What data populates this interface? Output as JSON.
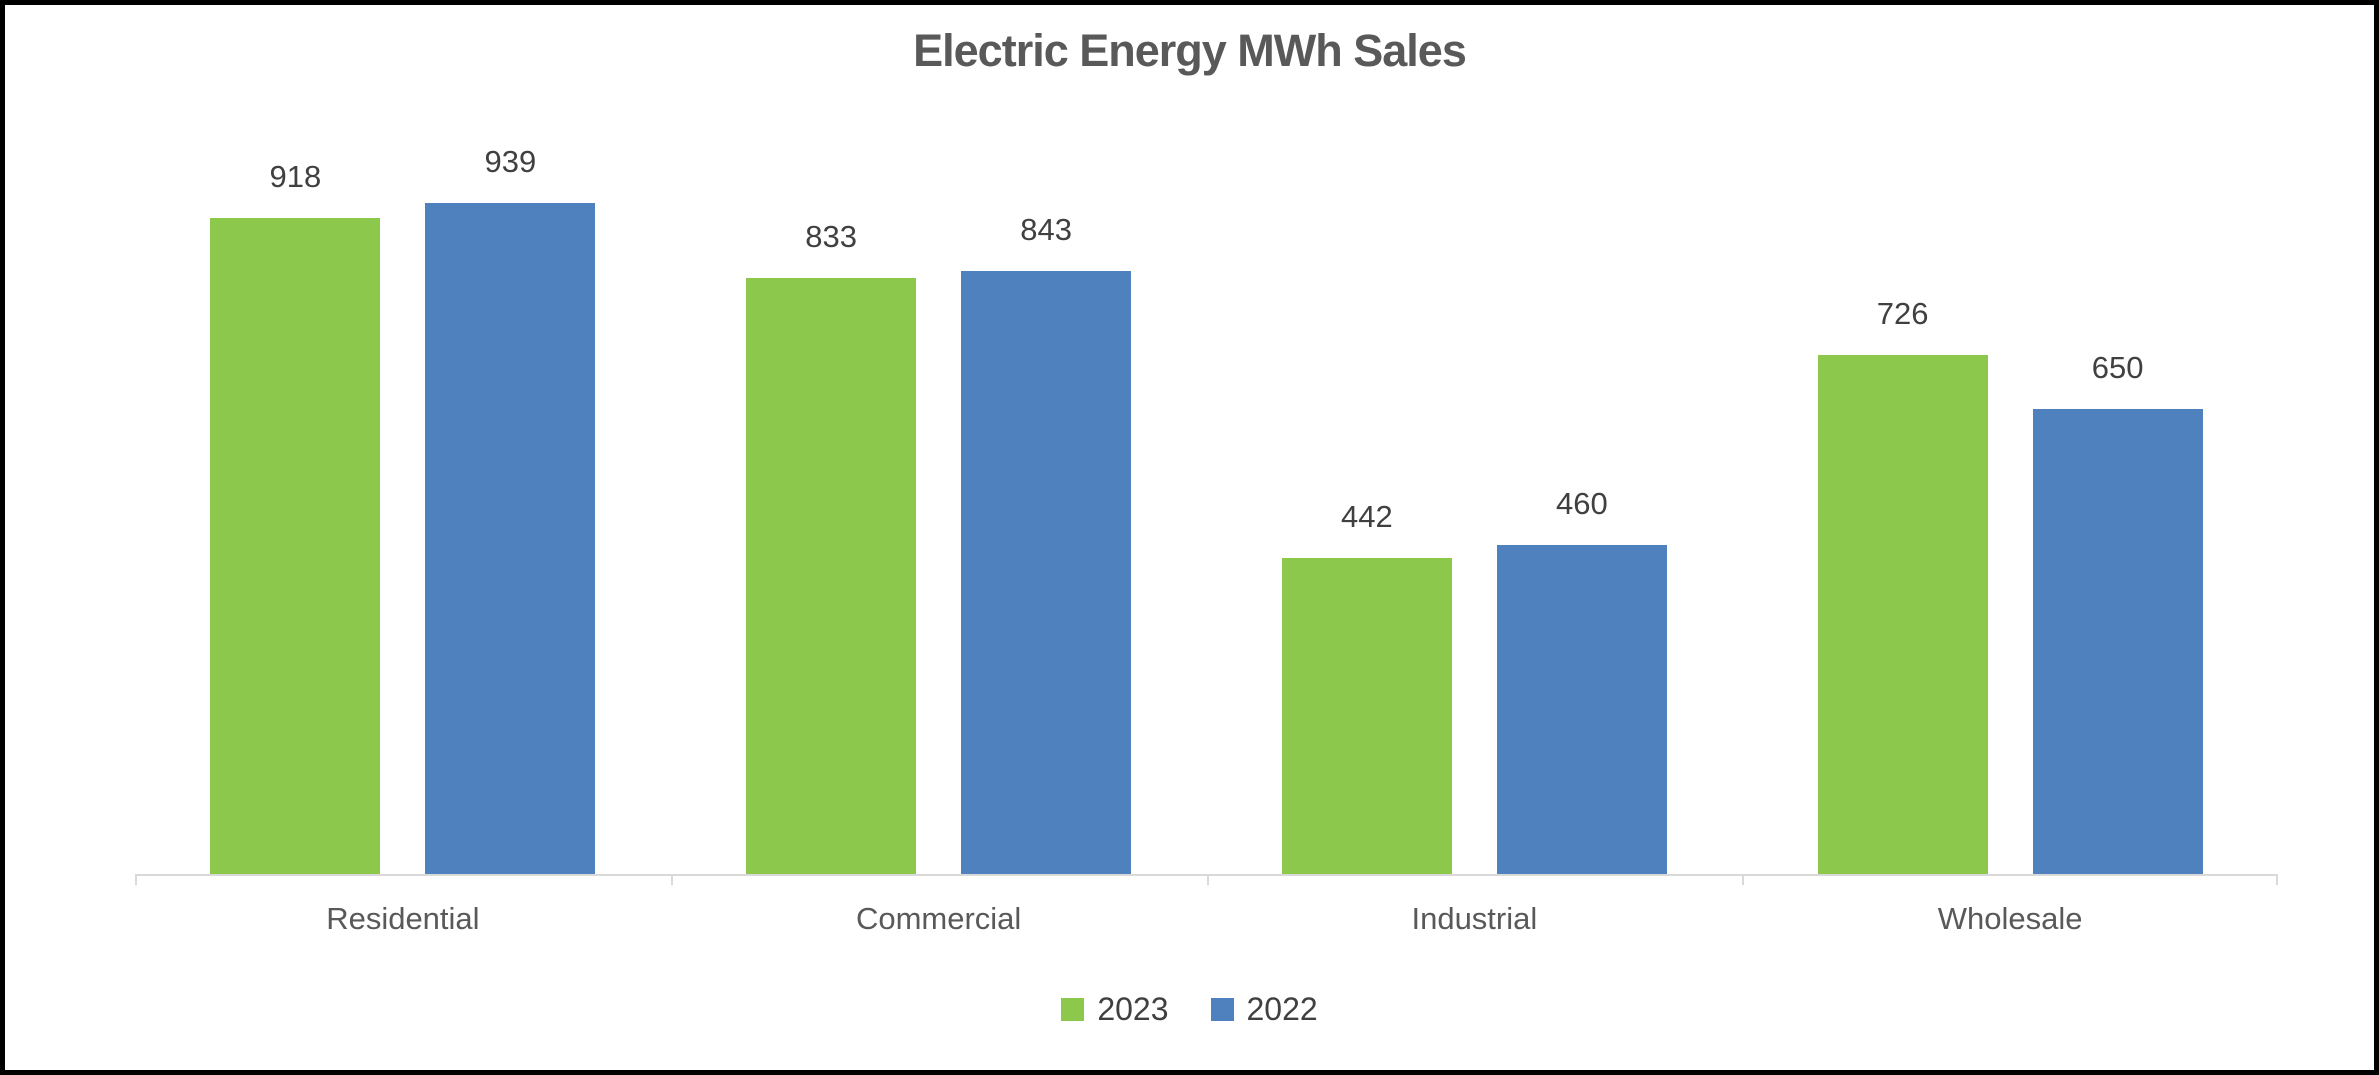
{
  "page": {
    "background": "#FFFFFF",
    "border_color": "#000000"
  },
  "chart_data": {
    "type": "bar",
    "title": "Electric Energy MWh Sales",
    "categories": [
      "Residential",
      "Commercial",
      "Industrial",
      "Wholesale"
    ],
    "series": [
      {
        "name": "2023",
        "color": "#8CC84B",
        "values": [
          918,
          833,
          442,
          726
        ]
      },
      {
        "name": "2022",
        "color": "#4E81BD",
        "values": [
          939,
          843,
          460,
          650
        ]
      }
    ],
    "ylim": [
      0,
      1000
    ],
    "grid": false,
    "value_labels": true,
    "legend_position": "bottom",
    "xlabel": "",
    "ylabel": "",
    "title_color": "#595959",
    "value_label_color": "#404040",
    "category_label_color": "#595959",
    "axis_color": "#D9D9D9"
  }
}
